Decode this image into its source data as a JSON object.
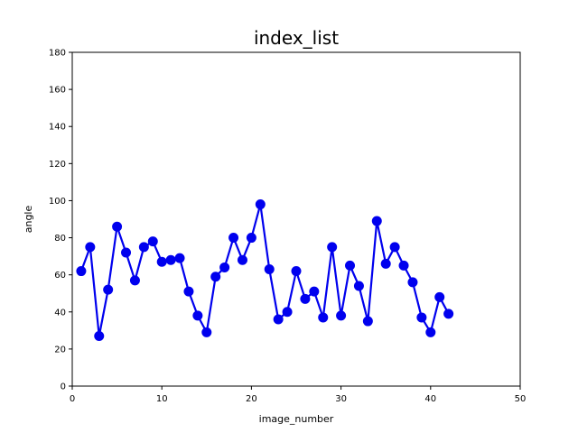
{
  "chart_data": {
    "type": "line",
    "title": "index_list",
    "xlabel": "image_number",
    "ylabel": "angle",
    "xlim": [
      0,
      50
    ],
    "ylim": [
      0,
      180
    ],
    "xticks": [
      0,
      10,
      20,
      30,
      40,
      50
    ],
    "yticks": [
      0,
      20,
      40,
      60,
      80,
      100,
      120,
      140,
      160,
      180
    ],
    "grid": false,
    "series": [
      {
        "color": "#0000ee",
        "marker": "circle",
        "x": [
          1,
          2,
          3,
          4,
          5,
          6,
          7,
          8,
          9,
          10,
          11,
          12,
          13,
          14,
          15,
          16,
          17,
          18,
          19,
          20,
          21,
          22,
          23,
          24,
          25,
          26,
          27,
          28,
          29,
          30,
          31,
          32,
          33,
          34,
          35,
          36,
          37,
          38,
          39,
          40,
          41,
          42
        ],
        "y": [
          62,
          75,
          27,
          52,
          86,
          72,
          57,
          75,
          78,
          67,
          68,
          69,
          51,
          38,
          29,
          59,
          64,
          80,
          68,
          80,
          98,
          63,
          36,
          40,
          62,
          47,
          51,
          37,
          75,
          38,
          65,
          54,
          35,
          89,
          66,
          75,
          65,
          56,
          37,
          29,
          48,
          39
        ]
      }
    ]
  }
}
